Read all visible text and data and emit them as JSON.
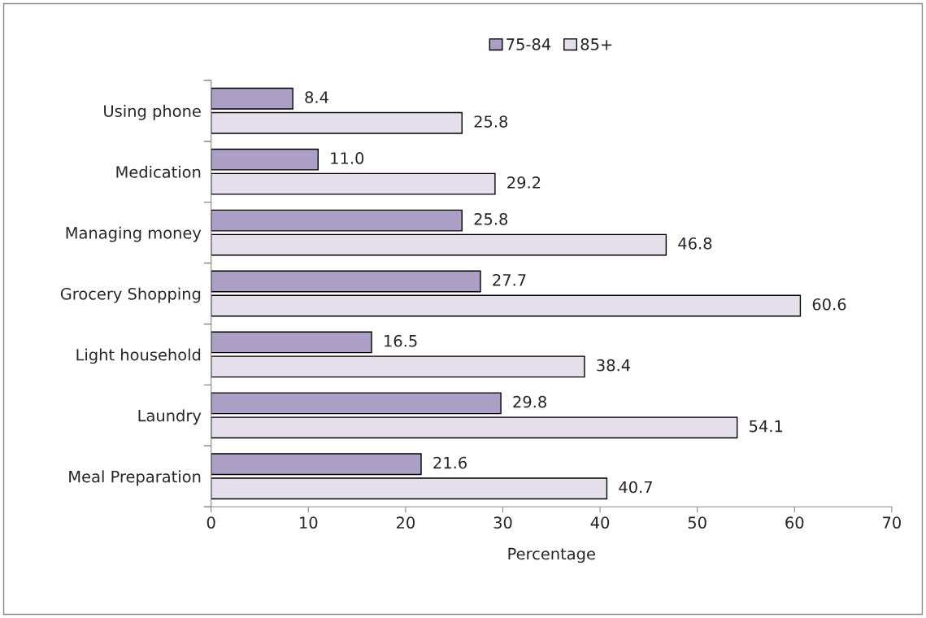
{
  "chart_data": {
    "type": "bar",
    "orientation": "horizontal",
    "xlabel": "Percentage",
    "categories": [
      "Using phone",
      "Medication",
      "Managing money",
      "Grocery Shopping",
      "Light household",
      "Laundry",
      "Meal Preparation"
    ],
    "series": [
      {
        "name": "75-84",
        "color": "#ac9fc6",
        "values": [
          8.4,
          11.0,
          25.8,
          27.7,
          16.5,
          29.8,
          21.6
        ],
        "value_labels": [
          "8.4",
          "11.0",
          "25.8",
          "27.7",
          "16.5",
          "29.8",
          "21.6"
        ]
      },
      {
        "name": "85+",
        "color": "#e5dfec",
        "values": [
          25.8,
          29.2,
          46.8,
          60.6,
          38.4,
          54.1,
          40.7
        ],
        "value_labels": [
          "25.8",
          "29.2",
          "46.8",
          "60.6",
          "38.4",
          "54.1",
          "40.7"
        ]
      }
    ],
    "xlim": [
      0,
      70
    ],
    "xticks": [
      0,
      10,
      20,
      30,
      40,
      50,
      60,
      70
    ],
    "grid": false,
    "legend": "top"
  }
}
